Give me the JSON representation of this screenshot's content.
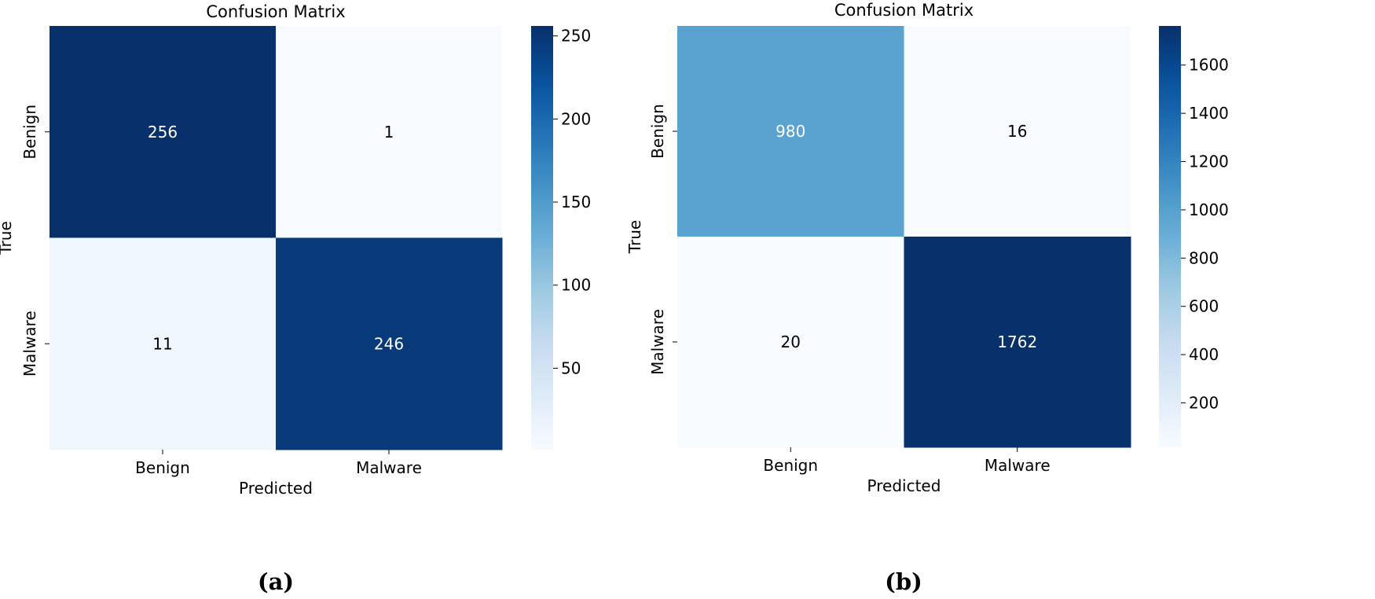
{
  "chart_data": [
    {
      "type": "heatmap",
      "title": "Confusion Matrix",
      "xlabel": "Predicted",
      "ylabel": "True",
      "x_categories": [
        "Benign",
        "Malware"
      ],
      "y_categories": [
        "Benign",
        "Malware"
      ],
      "values": [
        [
          256,
          1
        ],
        [
          11,
          246
        ]
      ],
      "colormap": "Blues",
      "colorbar": {
        "min": 1,
        "max": 256,
        "ticks": [
          50,
          100,
          150,
          200,
          250
        ]
      },
      "panel_label": "(a)"
    },
    {
      "type": "heatmap",
      "title": "Confusion Matrix",
      "xlabel": "Predicted",
      "ylabel": "True",
      "x_categories": [
        "Benign",
        "Malware"
      ],
      "y_categories": [
        "Benign",
        "Malware"
      ],
      "values": [
        [
          980,
          16
        ],
        [
          20,
          1762
        ]
      ],
      "colormap": "Blues",
      "colorbar": {
        "min": 16,
        "max": 1762,
        "ticks": [
          200,
          400,
          600,
          800,
          1000,
          1200,
          1400,
          1600
        ]
      },
      "panel_label": "(b)"
    }
  ]
}
